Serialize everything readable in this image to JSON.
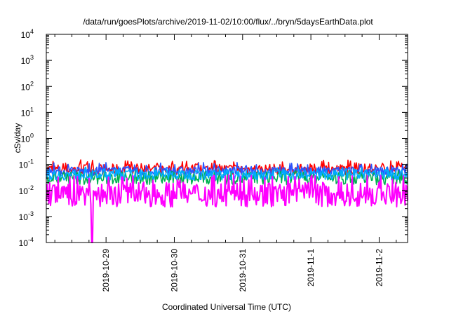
{
  "chart_data": {
    "type": "line",
    "title": "/data/run/goesPlots/archive/2019-11-02/10:00/flux/../bryn/5daysEarthData.plot",
    "xlabel": "Coordinated Universal Time (UTC)",
    "ylabel": "cSv/day",
    "yscale": "log",
    "ylim": [
      0.0001,
      10000
    ],
    "xlim": [
      "2019-10-28 03:00",
      "2019-11-02 10:00"
    ],
    "y_ticks": [
      {
        "value": 0.0001,
        "base": "10",
        "exp": "-4"
      },
      {
        "value": 0.001,
        "base": "10",
        "exp": "-3"
      },
      {
        "value": 0.01,
        "base": "10",
        "exp": "-2"
      },
      {
        "value": 0.1,
        "base": "10",
        "exp": "-1"
      },
      {
        "value": 1,
        "base": "10",
        "exp": "0"
      },
      {
        "value": 10,
        "base": "10",
        "exp": "1"
      },
      {
        "value": 100,
        "base": "10",
        "exp": "2"
      },
      {
        "value": 1000,
        "base": "10",
        "exp": "3"
      },
      {
        "value": 10000,
        "base": "10",
        "exp": "4"
      }
    ],
    "x_ticks": [
      {
        "label": "2019-10-29",
        "value": "2019-10-29 00:00"
      },
      {
        "label": "2019-10-30",
        "value": "2019-10-30 00:00"
      },
      {
        "label": "2019-10-31",
        "value": "2019-10-31 00:00"
      },
      {
        "label": "2019-11-1",
        "value": "2019-11-01 00:00"
      },
      {
        "label": "2019-11-2",
        "value": "2019-11-02 00:00"
      }
    ],
    "grid": false,
    "legend": "none",
    "series": [
      {
        "color": "#ff0000",
        "base": 0.065,
        "spread": 1.6,
        "spike_max": 0.15
      },
      {
        "color": "#2b55ff",
        "base": 0.055,
        "spread": 1.5,
        "spike_max": 0.12
      },
      {
        "color": "#00b050",
        "base": 0.03,
        "spread": 1.8,
        "spike_max": 0.06
      },
      {
        "color": "#00aaff",
        "base": 0.04,
        "spread": 1.6,
        "spike_max": 0.08
      },
      {
        "color": "#ff00ff",
        "base": 0.007,
        "spread": 3.0,
        "spike_max": 0.04,
        "dip": {
          "time": "2019-10-28 19:00",
          "value": 0.0001
        }
      }
    ]
  }
}
